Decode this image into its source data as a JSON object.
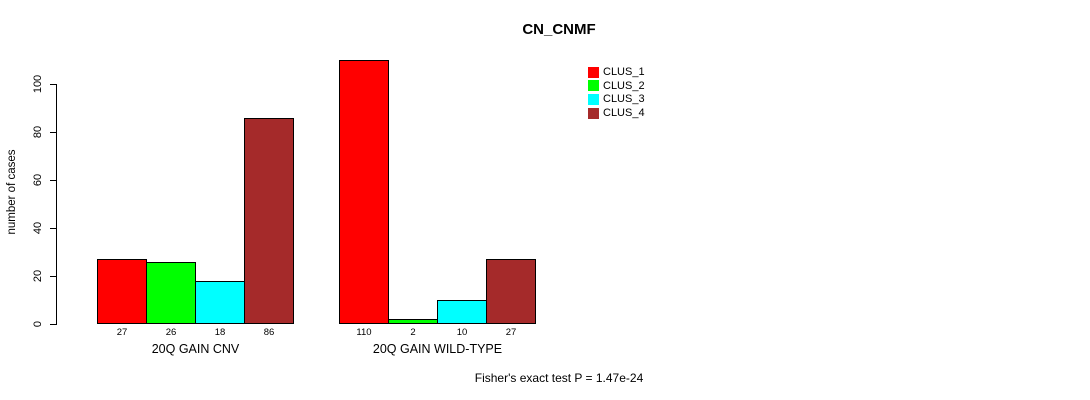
{
  "chart_data": {
    "type": "bar",
    "title": "CN_CNMF",
    "ylabel": "number of cases",
    "ylim": [
      0,
      110
    ],
    "yticks": [
      0,
      20,
      40,
      60,
      80,
      100
    ],
    "grid": false,
    "legend_position": "top-right",
    "bar_value_labels": true,
    "categories": [
      "20Q GAIN CNV",
      "20Q GAIN WILD-TYPE"
    ],
    "series": [
      {
        "name": "CLUS_1",
        "color": "#ff0000",
        "values": [
          27,
          110
        ]
      },
      {
        "name": "CLUS_2",
        "color": "#00ff00",
        "values": [
          26,
          2
        ]
      },
      {
        "name": "CLUS_3",
        "color": "#00ffff",
        "values": [
          18,
          10
        ]
      },
      {
        "name": "CLUS_4",
        "color": "#a52a2a",
        "values": [
          86,
          27
        ]
      }
    ],
    "annotation": "Fisher's exact test P = 1.47e-24"
  }
}
